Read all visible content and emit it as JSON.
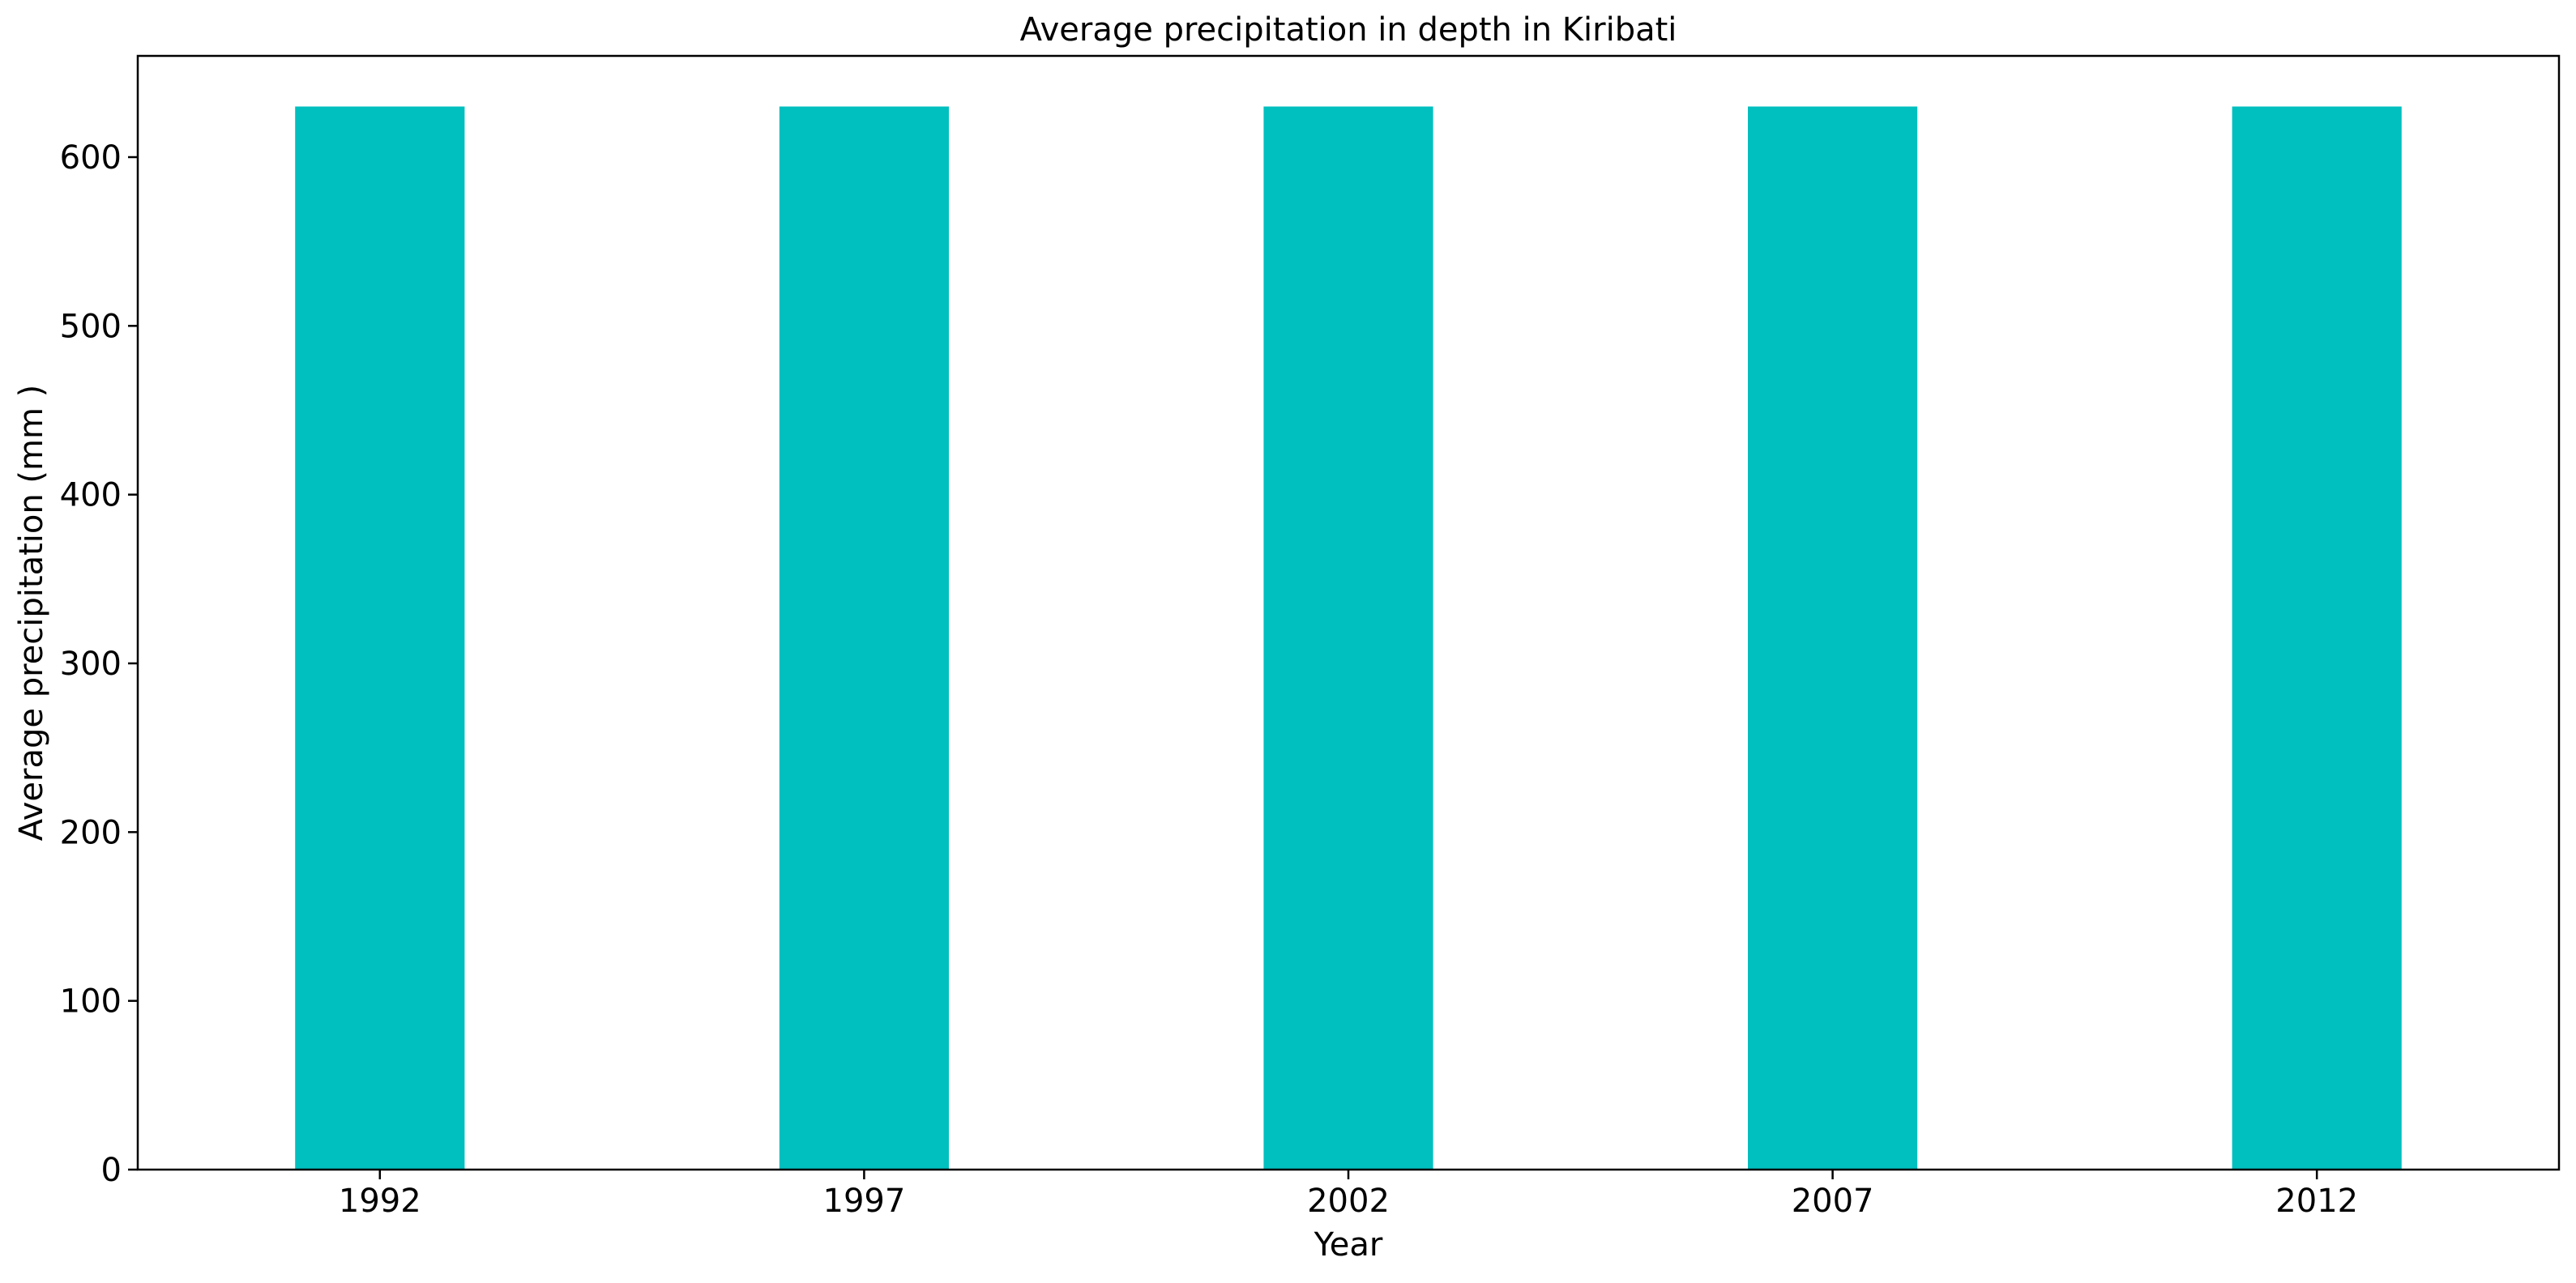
{
  "chart_data": {
    "type": "bar",
    "title": "Average precipitation in depth in Kiribati",
    "xlabel": "Year",
    "ylabel": "Average precipitation (mm )",
    "categories": [
      "1992",
      "1997",
      "2002",
      "2007",
      "2012"
    ],
    "values": [
      630,
      630,
      630,
      630,
      630
    ],
    "ylim": [
      0,
      660
    ],
    "yticks": [
      "0",
      "100",
      "200",
      "300",
      "400",
      "500",
      "600"
    ],
    "grid": false,
    "legend": "none",
    "bar_color": "#00bfbf"
  }
}
